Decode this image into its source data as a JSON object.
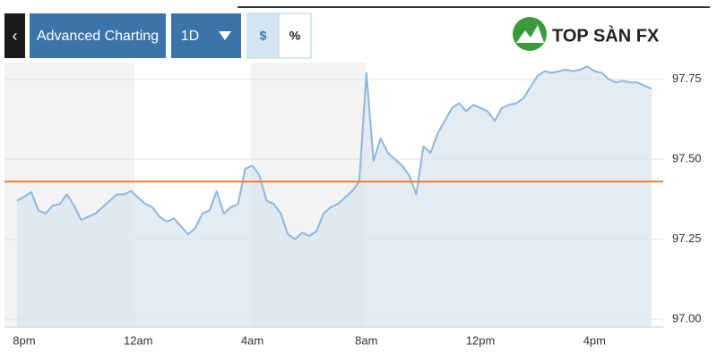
{
  "toolbar": {
    "back": "‹",
    "title": "Advanced Charting",
    "range": "1D",
    "units": [
      "$",
      "%"
    ]
  },
  "logo": "TOP SÀN FX",
  "chart_data": {
    "type": "line",
    "categories": [
      null,
      "8pm",
      null,
      null,
      null,
      null,
      null,
      null,
      null,
      null,
      null,
      null,
      null,
      null,
      null,
      null,
      null,
      "12am",
      null,
      null,
      null,
      null,
      null,
      null,
      null,
      null,
      null,
      null,
      null,
      null,
      null,
      null,
      null,
      "4am",
      null,
      null,
      null,
      null,
      null,
      null,
      null,
      null,
      null,
      null,
      null,
      null,
      null,
      null,
      null,
      "8am",
      null,
      null,
      null,
      null,
      null,
      null,
      null,
      null,
      null,
      null,
      null,
      null,
      null,
      null,
      null,
      "12pm",
      null,
      null,
      null,
      null,
      null,
      null,
      null,
      null,
      null,
      null,
      null,
      null,
      null,
      null,
      null,
      "4pm",
      null,
      null,
      null,
      null,
      null,
      null,
      null,
      null
    ],
    "series": [
      {
        "color": "#8db6dd",
        "values": [
          97.37,
          97.383,
          97.397,
          97.34,
          97.33,
          97.355,
          97.36,
          97.39,
          97.355,
          97.31,
          97.32,
          97.33,
          97.35,
          97.37,
          97.39,
          97.39,
          97.4,
          97.38,
          97.36,
          97.35,
          97.32,
          97.305,
          97.315,
          97.29,
          97.265,
          97.285,
          97.33,
          97.34,
          97.4,
          97.33,
          97.35,
          97.36,
          97.47,
          97.48,
          97.45,
          97.37,
          97.36,
          97.33,
          97.265,
          97.25,
          97.27,
          97.26,
          97.275,
          97.33,
          97.35,
          97.36,
          97.38,
          97.4,
          97.43,
          97.77,
          97.495,
          97.565,
          97.52,
          97.5,
          97.48,
          97.45,
          97.39,
          97.54,
          97.52,
          97.58,
          97.62,
          97.66,
          97.675,
          97.65,
          97.67,
          97.66,
          97.65,
          97.62,
          97.66,
          97.67,
          97.675,
          97.69,
          97.725,
          97.76,
          97.775,
          97.77,
          97.775,
          97.78,
          97.775,
          97.78,
          97.79,
          97.775,
          97.77,
          97.75,
          97.74,
          97.745,
          97.74,
          97.74,
          97.73,
          97.72
        ]
      }
    ],
    "ylim": [
      96.975,
      97.83
    ],
    "yticks": [
      {
        "value": 97,
        "label": "97.00"
      },
      97.25,
      {
        "value": 97.5,
        "label": "97.50"
      },
      97.75
    ],
    "grid": true,
    "reference_line": {
      "value": 97.43,
      "color": "#e8823a"
    }
  }
}
